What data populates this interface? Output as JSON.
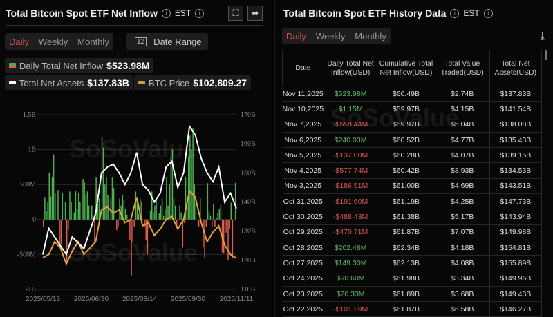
{
  "left": {
    "title": "Total Bitcoin Spot ETF Net Inflow",
    "tz": "EST",
    "tabs": [
      "Daily",
      "Weekly",
      "Monthly"
    ],
    "active_tab": "Daily",
    "date_range": "Date Range",
    "legend": [
      {
        "label": "Daily Total Net Inflow",
        "value": "$523.98M"
      },
      {
        "label": "Total Net Assets",
        "value": "$137.83B"
      },
      {
        "label": "BTC Price",
        "value": "$102,809.27"
      }
    ],
    "watermark": "SoSoValue",
    "watermark_url": "sosovalue.com"
  },
  "colors": {
    "positive": "#4caf50",
    "negative": "#e05a4f",
    "net_assets": "#ffffff",
    "btc_price": "#e6a23c",
    "active_tab": "#d9534f"
  },
  "chart_data": {
    "type": "bar+line",
    "x_ticks": [
      "2025/05/13",
      "2025/06/30",
      "2025/08/14",
      "2025/09/30",
      "2025/11/11"
    ],
    "y_left_ticks": [
      "1.5B",
      "1B",
      "500M",
      "0",
      "-500M",
      "-1B"
    ],
    "y_left_lim_millions": [
      -1000,
      1500
    ],
    "y_right_ticks": [
      "170B",
      "160B",
      "150B",
      "140B",
      "130B",
      "120B",
      "110B"
    ],
    "y_right_lim_billions": [
      110,
      170
    ],
    "btc_price_lim_usd": [
      93000,
      148000
    ],
    "series": [
      {
        "name": "Daily Total Net Inflow",
        "kind": "bar",
        "unit": "M USD",
        "values": [
          -100,
          320,
          120,
          250,
          660,
          330,
          610,
          930,
          380,
          0,
          420,
          -400,
          -350,
          380,
          0,
          250,
          -600,
          -150,
          400,
          250,
          0,
          100,
          410,
          150,
          380,
          250,
          0,
          580,
          540,
          360,
          400,
          200,
          0,
          200,
          50,
          -350,
          600,
          220,
          300,
          0,
          1180,
          1030,
          500,
          600,
          350,
          0,
          300,
          600,
          450,
          0,
          -150,
          -100,
          300,
          200,
          350,
          280,
          150,
          70,
          0,
          -300,
          -800,
          -330,
          -100,
          400,
          300,
          80,
          300,
          260,
          0,
          -100,
          -300,
          -500,
          -130,
          130,
          400,
          100,
          200,
          280,
          0,
          90,
          200,
          300,
          50,
          150,
          600,
          200,
          500,
          900,
          1000,
          300,
          200,
          -100,
          0,
          200,
          100,
          -400,
          -50,
          600,
          300,
          900,
          1200,
          1000,
          1300,
          500,
          300,
          0,
          -100,
          300,
          0,
          -400,
          -550,
          -100,
          520,
          110,
          50,
          -100,
          230,
          -101,
          20,
          91,
          149,
          202,
          -471,
          -488,
          -192,
          -187,
          -578,
          -137,
          240,
          -558,
          1,
          524
        ]
      },
      {
        "name": "Total Net Assets",
        "kind": "line",
        "unit": "B USD",
        "values": [
          122,
          131,
          128,
          125,
          122,
          128,
          126,
          124,
          130,
          136,
          150,
          152,
          153,
          150,
          146,
          150,
          157,
          146,
          144,
          140,
          143,
          152,
          154,
          145,
          150,
          166,
          163,
          155,
          150,
          147,
          152,
          140,
          143,
          137.83
        ]
      },
      {
        "name": "BTC Price",
        "kind": "line",
        "unit": "USD",
        "values": [
          103000,
          104000,
          108000,
          106000,
          101000,
          105000,
          108000,
          104000,
          106000,
          108000,
          118000,
          119000,
          117000,
          118000,
          114000,
          115000,
          122000,
          113000,
          114000,
          110000,
          112000,
          115000,
          116000,
          112000,
          115000,
          124000,
          122000,
          114000,
          108000,
          111000,
          113000,
          107000,
          104000,
          102809.27
        ]
      }
    ]
  },
  "right": {
    "title": "Total Bitcoin Spot ETF History Data",
    "tz": "EST",
    "tabs": [
      "Daily",
      "Weekly",
      "Monthly"
    ],
    "active_tab": "Daily",
    "columns": [
      "Date",
      "Daily Total Net Inflow(USD)",
      "Cumulative Total Net Inflow(USD)",
      "Total Value Traded(USD)",
      "Total Net Assets(USD)"
    ],
    "rows": [
      [
        "Nov 11,2025",
        "$523.98M",
        "$60.49B",
        "$2.74B",
        "$137.83B"
      ],
      [
        "Nov 10,2025",
        "$1.15M",
        "$59.97B",
        "$4.15B",
        "$141.54B"
      ],
      [
        "Nov 7,2025",
        "-$558.44M",
        "$59.97B",
        "$5.04B",
        "$138.08B"
      ],
      [
        "Nov 6,2025",
        "$240.03M",
        "$60.52B",
        "$4.77B",
        "$135.43B"
      ],
      [
        "Nov 5,2025",
        "-$137.00M",
        "$60.28B",
        "$4.07B",
        "$139.15B"
      ],
      [
        "Nov 4,2025",
        "-$577.74M",
        "$60.42B",
        "$8.93B",
        "$134.53B"
      ],
      [
        "Nov 3,2025",
        "-$186.51M",
        "$61.00B",
        "$4.69B",
        "$143.51B"
      ],
      [
        "Oct 31,2025",
        "-$191.60M",
        "$61.19B",
        "$4.25B",
        "$147.73B"
      ],
      [
        "Oct 30,2025",
        "-$488.43M",
        "$61.38B",
        "$5.17B",
        "$143.94B"
      ],
      [
        "Oct 29,2025",
        "-$470.71M",
        "$61.87B",
        "$7.07B",
        "$149.98B"
      ],
      [
        "Oct 28,2025",
        "$202.48M",
        "$62.34B",
        "$4.18B",
        "$154.81B"
      ],
      [
        "Oct 27,2025",
        "$149.30M",
        "$62.13B",
        "$4.08B",
        "$155.89B"
      ],
      [
        "Oct 24,2025",
        "$90.60M",
        "$61.98B",
        "$3.34B",
        "$149.96B"
      ],
      [
        "Oct 23,2025",
        "$20.33M",
        "$61.89B",
        "$3.68B",
        "$149.43B"
      ],
      [
        "Oct 22,2025",
        "-$101.29M",
        "$61.87B",
        "$6.58B",
        "$146.27B"
      ]
    ]
  }
}
